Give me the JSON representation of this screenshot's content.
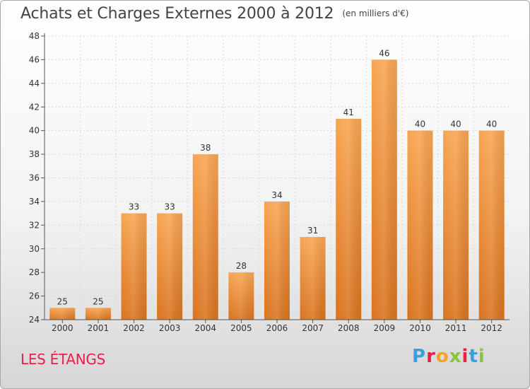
{
  "header": {
    "title": "Achats et Charges Externes 2000 à 2012",
    "unit": "(en milliers d'€)"
  },
  "footer": {
    "commune": "LES ÉTANGS",
    "brand": "Proxiti"
  },
  "colors": {
    "bar_top": "#f8a552",
    "bar_bottom": "#d9731f",
    "commune": "#e8204a",
    "axis": "#555555",
    "grid": "#d8d8d8"
  },
  "chart_data": {
    "type": "bar",
    "categories": [
      "2000",
      "2001",
      "2002",
      "2003",
      "2004",
      "2005",
      "2006",
      "2007",
      "2008",
      "2009",
      "2010",
      "2011",
      "2012"
    ],
    "values": [
      25,
      25,
      33,
      33,
      38,
      28,
      34,
      31,
      41,
      46,
      40,
      40,
      40
    ],
    "title": "Achats et Charges Externes 2000 à 2012",
    "unit": "(en milliers d'€)",
    "ylim": [
      24,
      48
    ],
    "yticks": [
      24,
      26,
      28,
      30,
      32,
      34,
      36,
      38,
      40,
      42,
      44,
      46,
      48
    ],
    "grid": true,
    "data_labels": true
  }
}
